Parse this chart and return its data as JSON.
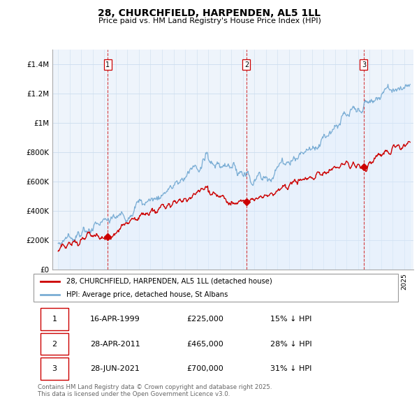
{
  "title": "28, CHURCHFIELD, HARPENDEN, AL5 1LL",
  "subtitle": "Price paid vs. HM Land Registry's House Price Index (HPI)",
  "legend_label_red": "28, CHURCHFIELD, HARPENDEN, AL5 1LL (detached house)",
  "legend_label_blue": "HPI: Average price, detached house, St Albans",
  "transactions": [
    {
      "num": 1,
      "date": "16-APR-1999",
      "price": "£225,000",
      "pct": "15% ↓ HPI",
      "year": 1999.29,
      "value": 225000
    },
    {
      "num": 2,
      "date": "28-APR-2011",
      "price": "£465,000",
      "pct": "28% ↓ HPI",
      "year": 2011.32,
      "value": 465000
    },
    {
      "num": 3,
      "date": "28-JUN-2021",
      "price": "£700,000",
      "pct": "31% ↓ HPI",
      "year": 2021.49,
      "value": 700000
    }
  ],
  "footnote": "Contains HM Land Registry data © Crown copyright and database right 2025.\nThis data is licensed under the Open Government Licence v3.0.",
  "color_red": "#cc0000",
  "color_blue": "#7aadd4",
  "color_fill": "#ddeeff",
  "color_vline": "#cc0000",
  "grid_color": "#ccddee",
  "ylim": [
    0,
    1500000
  ],
  "yticks": [
    0,
    200000,
    400000,
    600000,
    800000,
    1000000,
    1200000,
    1400000
  ],
  "ytick_labels": [
    "£0",
    "£200K",
    "£400K",
    "£600K",
    "£800K",
    "£1M",
    "£1.2M",
    "£1.4M"
  ],
  "xlim_start": 1994.5,
  "xlim_end": 2025.8
}
